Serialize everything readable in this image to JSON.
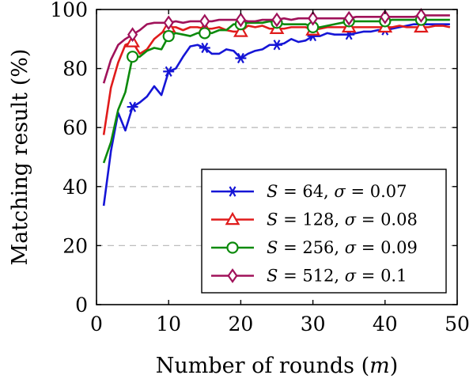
{
  "chart_data": {
    "type": "line",
    "xlabel": "Number of rounds (m)",
    "ylabel": "Matching result (%)",
    "xlim": [
      0,
      50
    ],
    "ylim": [
      0,
      100
    ],
    "xticks": [
      "0",
      "10",
      "20",
      "30",
      "40",
      "50"
    ],
    "yticks": [
      "0",
      "20",
      "40",
      "60",
      "80",
      "100"
    ],
    "grid": "horizontal dashed at 20, 40, 60, 80",
    "legend_placement": "lower-right",
    "series": [
      {
        "name": "S = 64, σ = 0.07",
        "name_parts": {
          "var1": "S",
          "val1": "64",
          "var2": "σ",
          "val2": "0.07"
        },
        "color": "#1515d6",
        "marker": "asterisk",
        "marker_every": 5,
        "x": [
          1,
          2,
          3,
          4,
          5,
          6,
          7,
          8,
          9,
          10,
          11,
          12,
          13,
          14,
          15,
          16,
          17,
          18,
          19,
          20,
          21,
          22,
          23,
          24,
          25,
          26,
          27,
          28,
          29,
          30,
          31,
          32,
          33,
          34,
          35,
          36,
          37,
          38,
          39,
          40,
          41,
          42,
          43,
          44,
          45,
          46,
          47,
          48,
          49
        ],
        "y": [
          33.5,
          52,
          65,
          59,
          67,
          68.5,
          70.5,
          74,
          71,
          79,
          80,
          84,
          87.5,
          88,
          87,
          85,
          85,
          86.5,
          86,
          83.5,
          85,
          86,
          86.5,
          88,
          88,
          88.5,
          90,
          89,
          89.5,
          91,
          91,
          92,
          91.5,
          91.5,
          91.5,
          92,
          92.5,
          92.5,
          93,
          93,
          93.5,
          94,
          94.5,
          95,
          95,
          95,
          95,
          95,
          95
        ]
      },
      {
        "name": "S = 128, σ = 0.08",
        "name_parts": {
          "var1": "S",
          "val1": "128",
          "var2": "σ",
          "val2": "0.08"
        },
        "color": "#e01b1b",
        "marker": "triangle",
        "marker_every": 5,
        "x": [
          1,
          2,
          3,
          4,
          5,
          6,
          7,
          8,
          9,
          10,
          11,
          12,
          13,
          14,
          15,
          16,
          17,
          18,
          19,
          20,
          21,
          22,
          23,
          24,
          25,
          26,
          27,
          28,
          29,
          30,
          31,
          32,
          33,
          34,
          35,
          36,
          37,
          38,
          39,
          40,
          41,
          42,
          43,
          44,
          45,
          46,
          47,
          48,
          49
        ],
        "y": [
          57.5,
          73.5,
          82,
          88,
          89,
          85,
          86.5,
          90,
          92,
          94,
          94,
          93,
          94,
          94,
          93.5,
          93.5,
          94,
          93,
          92.5,
          92.5,
          94.5,
          94,
          94.5,
          93.5,
          93.5,
          93.5,
          94,
          94,
          94,
          93,
          93.5,
          94,
          94,
          94,
          94,
          94,
          94,
          94,
          94,
          94,
          94,
          94.5,
          94,
          94,
          94,
          94,
          94.5,
          94.5,
          94
        ]
      },
      {
        "name": "S = 256, σ = 0.09",
        "name_parts": {
          "var1": "S",
          "val1": "256",
          "var2": "σ",
          "val2": "0.09"
        },
        "color": "#0c8a0c",
        "marker": "circle",
        "marker_every": 5,
        "x": [
          1,
          2,
          3,
          4,
          5,
          6,
          7,
          8,
          9,
          10,
          11,
          12,
          13,
          14,
          15,
          16,
          17,
          18,
          19,
          20,
          21,
          22,
          23,
          24,
          25,
          26,
          27,
          28,
          29,
          30,
          31,
          32,
          33,
          34,
          35,
          36,
          37,
          38,
          39,
          40,
          41,
          42,
          43,
          44,
          45,
          46,
          47,
          48,
          49
        ],
        "y": [
          48,
          55,
          66,
          72,
          84,
          84,
          86,
          87,
          86.5,
          91,
          92,
          91.5,
          91,
          92,
          92,
          92,
          93,
          93,
          95,
          95,
          95.5,
          95.5,
          95.5,
          96,
          95.5,
          95,
          95,
          95,
          95,
          94,
          94,
          94.5,
          95,
          95.5,
          96,
          96,
          96,
          96,
          96,
          96,
          96.5,
          96.5,
          96.5,
          96.5,
          96.5,
          96.5,
          96.5,
          96.5,
          96.5
        ]
      },
      {
        "name": "S = 512, σ = 0.1",
        "name_parts": {
          "var1": "S",
          "val1": "512",
          "var2": "σ",
          "val2": "0.1"
        },
        "color": "#a0125a",
        "marker": "diamond",
        "marker_every": 5,
        "x": [
          1,
          2,
          3,
          4,
          5,
          6,
          7,
          8,
          9,
          10,
          11,
          12,
          13,
          14,
          15,
          16,
          17,
          18,
          19,
          20,
          21,
          22,
          23,
          24,
          25,
          26,
          27,
          28,
          29,
          30,
          31,
          32,
          33,
          34,
          35,
          36,
          37,
          38,
          39,
          40,
          41,
          42,
          43,
          44,
          45,
          46,
          47,
          48,
          49
        ],
        "y": [
          75,
          83,
          88,
          90,
          91.5,
          93,
          95,
          95.5,
          95.5,
          95.5,
          96,
          95.5,
          96,
          96,
          96,
          96,
          96.5,
          96.5,
          96.5,
          96.5,
          96,
          96,
          96.5,
          96.5,
          96.5,
          97,
          96.5,
          97,
          97,
          97,
          97,
          97,
          97,
          97,
          97,
          97.5,
          97.5,
          97.5,
          97.5,
          97.5,
          97.5,
          97.5,
          97.5,
          97.5,
          98,
          98,
          98,
          98,
          98
        ]
      }
    ]
  }
}
